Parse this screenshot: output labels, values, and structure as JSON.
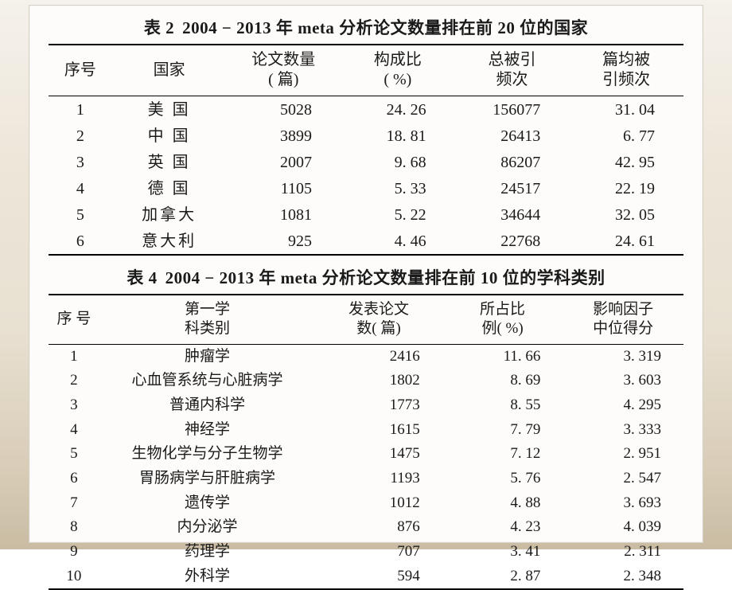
{
  "table2": {
    "title_prefix": "表 2",
    "title_text": "2004 − 2013 年 meta 分析论文数量排在前 20 位的国家",
    "headers": {
      "seq": "序号",
      "country": "国家",
      "count_l1": "论文数量",
      "count_l2": "( 篇)",
      "ratio_l1": "构成比",
      "ratio_l2": "( %)",
      "cites_l1": "总被引",
      "cites_l2": "频次",
      "avg_l1": "篇均被",
      "avg_l2": "引频次"
    },
    "col_widths": [
      "10%",
      "18%",
      "18%",
      "18%",
      "18%",
      "18%"
    ],
    "rows": [
      {
        "seq": "1",
        "country": "美 国",
        "count": "5028",
        "ratio": "24. 26",
        "cites": "156077",
        "avg": "31. 04"
      },
      {
        "seq": "2",
        "country": "中 国",
        "count": "3899",
        "ratio": "18. 81",
        "cites": "26413",
        "avg": "6. 77"
      },
      {
        "seq": "3",
        "country": "英 国",
        "count": "2007",
        "ratio": "9. 68",
        "cites": "86207",
        "avg": "42. 95"
      },
      {
        "seq": "4",
        "country": "德 国",
        "count": "1105",
        "ratio": "5. 33",
        "cites": "24517",
        "avg": "22. 19"
      },
      {
        "seq": "5",
        "country": "加拿大",
        "count": "1081",
        "ratio": "5. 22",
        "cites": "34644",
        "avg": "32. 05"
      },
      {
        "seq": "6",
        "country": "意大利",
        "count": "925",
        "ratio": "4. 46",
        "cites": "22768",
        "avg": "24. 61"
      }
    ]
  },
  "table4": {
    "title_prefix": "表 4",
    "title_text": "2004 − 2013 年 meta 分析论文数量排在前 10 位的学科类别",
    "headers": {
      "seq": "序 号",
      "subject_l1": "第一学",
      "subject_l2": "科类别",
      "count_l1": "发表论文",
      "count_l2": "数( 篇)",
      "ratio_l1": "所占比",
      "ratio_l2": "例( %)",
      "if_l1": "影响因子",
      "if_l2": "中位得分"
    },
    "col_widths": [
      "8%",
      "34%",
      "20%",
      "19%",
      "19%"
    ],
    "rows": [
      {
        "seq": "1",
        "subject": "肿瘤学",
        "count": "2416",
        "ratio": "11. 66",
        "if": "3. 319"
      },
      {
        "seq": "2",
        "subject": "心血管系统与心脏病学",
        "count": "1802",
        "ratio": "8. 69",
        "if": "3. 603"
      },
      {
        "seq": "3",
        "subject": "普通内科学",
        "count": "1773",
        "ratio": "8. 55",
        "if": "4. 295"
      },
      {
        "seq": "4",
        "subject": "神经学",
        "count": "1615",
        "ratio": "7. 79",
        "if": "3. 333"
      },
      {
        "seq": "5",
        "subject": "生物化学与分子生物学",
        "count": "1475",
        "ratio": "7. 12",
        "if": "2. 951"
      },
      {
        "seq": "6",
        "subject": "胃肠病学与肝脏病学",
        "count": "1193",
        "ratio": "5. 76",
        "if": "2. 547"
      },
      {
        "seq": "7",
        "subject": "遗传学",
        "count": "1012",
        "ratio": "4. 88",
        "if": "3. 693"
      },
      {
        "seq": "8",
        "subject": "内分泌学",
        "count": "876",
        "ratio": "4. 23",
        "if": "4. 039"
      },
      {
        "seq": "9",
        "subject": "药理学",
        "count": "707",
        "ratio": "3. 41",
        "if": "2. 311"
      },
      {
        "seq": "10",
        "subject": "外科学",
        "count": "594",
        "ratio": "2. 87",
        "if": "2. 348"
      }
    ]
  },
  "colors": {
    "panel_bg": "#fdfcfa",
    "text": "#1a1a1a",
    "rule": "#000000"
  }
}
